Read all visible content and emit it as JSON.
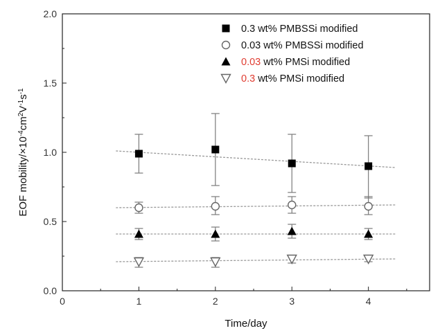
{
  "chart_data": {
    "type": "scatter",
    "xlabel": "Time/day",
    "ylabel_parts": [
      "EOF mobility/×10",
      "-4",
      "cm",
      "2",
      "V",
      "-1",
      "s",
      "-1"
    ],
    "xlim": [
      0,
      4.8
    ],
    "ylim": [
      0.0,
      2.0
    ],
    "x_ticks": [
      "0",
      "1",
      "2",
      "3",
      "4"
    ],
    "y_ticks": [
      "0.0",
      "0.5",
      "1.0",
      "1.5",
      "2.0"
    ],
    "grid": false,
    "legend_position": "top-right",
    "series": [
      {
        "name_parts": [
          "0.3",
          " wt% PMBSSi modified"
        ],
        "marker": "filled-square",
        "x": [
          1,
          2,
          3,
          4
        ],
        "y": [
          0.99,
          1.02,
          0.92,
          0.9
        ],
        "err_high": [
          1.13,
          1.28,
          1.13,
          1.12
        ],
        "err_low": [
          0.85,
          0.76,
          0.71,
          0.67
        ],
        "fit": {
          "x": [
            0.7,
            4.35
          ],
          "y": [
            1.01,
            0.89
          ]
        }
      },
      {
        "name_parts": [
          "0.03",
          " wt% PMBSSi modified"
        ],
        "marker": "open-circle",
        "x": [
          1,
          2,
          3,
          4
        ],
        "y": [
          0.6,
          0.61,
          0.62,
          0.61
        ],
        "err_high": [
          0.64,
          0.68,
          0.68,
          0.68
        ],
        "err_low": [
          0.56,
          0.55,
          0.56,
          0.55
        ],
        "fit": {
          "x": [
            0.7,
            4.35
          ],
          "y": [
            0.6,
            0.62
          ]
        }
      },
      {
        "name_parts": [
          "0.03",
          " wt% PMSi modified"
        ],
        "name_highlight": true,
        "marker": "filled-triangle-up",
        "x": [
          1,
          2,
          3,
          4
        ],
        "y": [
          0.41,
          0.41,
          0.43,
          0.41
        ],
        "err_high": [
          0.45,
          0.46,
          0.48,
          0.45
        ],
        "err_low": [
          0.37,
          0.36,
          0.38,
          0.37
        ],
        "fit": {
          "x": [
            0.7,
            4.35
          ],
          "y": [
            0.41,
            0.41
          ]
        }
      },
      {
        "name_parts": [
          "0.3",
          " wt% PMSi modified"
        ],
        "name_highlight": true,
        "marker": "open-triangle-down",
        "x": [
          1,
          2,
          3,
          4
        ],
        "y": [
          0.21,
          0.21,
          0.23,
          0.23
        ],
        "err_high": [
          0.24,
          0.24,
          0.25,
          0.25
        ],
        "err_low": [
          0.17,
          0.17,
          0.2,
          0.21
        ],
        "fit": {
          "x": [
            0.7,
            4.35
          ],
          "y": [
            0.21,
            0.23
          ]
        }
      }
    ],
    "colors": {
      "axis": "#222222",
      "marker": "#000000",
      "open_marker": "#666666",
      "error_bar": "#7a7a7a",
      "fit_line": "#999999",
      "highlight": "#e03c31"
    }
  }
}
